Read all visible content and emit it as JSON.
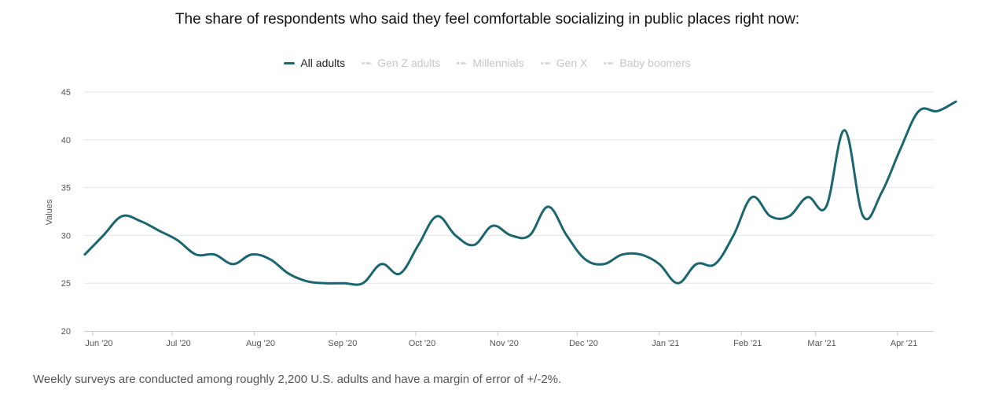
{
  "chart_data": {
    "type": "line",
    "title": "The share of respondents who said they feel comfortable socializing in public places right now:",
    "ylabel": "Values",
    "xlabel": "",
    "ylim": [
      20,
      45
    ],
    "yticks": [
      20,
      25,
      30,
      35,
      40,
      45
    ],
    "xticks": [
      {
        "label": "Jun '20",
        "date": "2020-06-01"
      },
      {
        "label": "Jul '20",
        "date": "2020-07-01"
      },
      {
        "label": "Aug '20",
        "date": "2020-08-01"
      },
      {
        "label": "Sep '20",
        "date": "2020-09-01"
      },
      {
        "label": "Oct '20",
        "date": "2020-10-01"
      },
      {
        "label": "Nov '20",
        "date": "2020-11-01"
      },
      {
        "label": "Dec '20",
        "date": "2020-12-01"
      },
      {
        "label": "Jan '21",
        "date": "2021-01-01"
      },
      {
        "label": "Feb '21",
        "date": "2021-02-01"
      },
      {
        "label": "Mar '21",
        "date": "2021-03-01"
      },
      {
        "label": "Apr '21",
        "date": "2021-04-01"
      }
    ],
    "grid": true,
    "legend_position": "top",
    "series": [
      {
        "name": "All adults",
        "color": "#1a6670",
        "active": true,
        "points": [
          {
            "x": "2020-05-29",
            "y": 28
          },
          {
            "x": "2020-06-05",
            "y": 30
          },
          {
            "x": "2020-06-12",
            "y": 32
          },
          {
            "x": "2020-06-19",
            "y": 31.5
          },
          {
            "x": "2020-06-26",
            "y": 30.5
          },
          {
            "x": "2020-07-03",
            "y": 29.5
          },
          {
            "x": "2020-07-10",
            "y": 28
          },
          {
            "x": "2020-07-17",
            "y": 28
          },
          {
            "x": "2020-07-24",
            "y": 27
          },
          {
            "x": "2020-07-31",
            "y": 28
          },
          {
            "x": "2020-08-07",
            "y": 27.5
          },
          {
            "x": "2020-08-14",
            "y": 26
          },
          {
            "x": "2020-08-21",
            "y": 25.2
          },
          {
            "x": "2020-08-28",
            "y": 25
          },
          {
            "x": "2020-09-04",
            "y": 25
          },
          {
            "x": "2020-09-11",
            "y": 25
          },
          {
            "x": "2020-09-18",
            "y": 27
          },
          {
            "x": "2020-09-25",
            "y": 26
          },
          {
            "x": "2020-10-02",
            "y": 29
          },
          {
            "x": "2020-10-09",
            "y": 32
          },
          {
            "x": "2020-10-16",
            "y": 30
          },
          {
            "x": "2020-10-23",
            "y": 29
          },
          {
            "x": "2020-10-30",
            "y": 31
          },
          {
            "x": "2020-11-06",
            "y": 30
          },
          {
            "x": "2020-11-13",
            "y": 30
          },
          {
            "x": "2020-11-20",
            "y": 33
          },
          {
            "x": "2020-11-27",
            "y": 30
          },
          {
            "x": "2020-12-04",
            "y": 27.5
          },
          {
            "x": "2020-12-11",
            "y": 27
          },
          {
            "x": "2020-12-18",
            "y": 28
          },
          {
            "x": "2020-12-25",
            "y": 28
          },
          {
            "x": "2021-01-01",
            "y": 27
          },
          {
            "x": "2021-01-08",
            "y": 25
          },
          {
            "x": "2021-01-15",
            "y": 27
          },
          {
            "x": "2021-01-22",
            "y": 27
          },
          {
            "x": "2021-01-29",
            "y": 30
          },
          {
            "x": "2021-02-05",
            "y": 34
          },
          {
            "x": "2021-02-12",
            "y": 32
          },
          {
            "x": "2021-02-19",
            "y": 32
          },
          {
            "x": "2021-02-26",
            "y": 34
          },
          {
            "x": "2021-03-05",
            "y": 33
          },
          {
            "x": "2021-03-12",
            "y": 41
          },
          {
            "x": "2021-03-19",
            "y": 32
          },
          {
            "x": "2021-03-26",
            "y": 34.5
          },
          {
            "x": "2021-04-02",
            "y": 39
          },
          {
            "x": "2021-04-09",
            "y": 43
          },
          {
            "x": "2021-04-16",
            "y": 43
          },
          {
            "x": "2021-04-23",
            "y": 44
          }
        ]
      },
      {
        "name": "Gen Z adults",
        "active": false,
        "points": []
      },
      {
        "name": "Millennials",
        "active": false,
        "points": []
      },
      {
        "name": "Gen X",
        "active": false,
        "points": []
      },
      {
        "name": "Baby boomers",
        "active": false,
        "points": []
      }
    ]
  },
  "footnote": "Weekly surveys are conducted among roughly 2,200 U.S. adults and have a margin of error of +/-2%."
}
